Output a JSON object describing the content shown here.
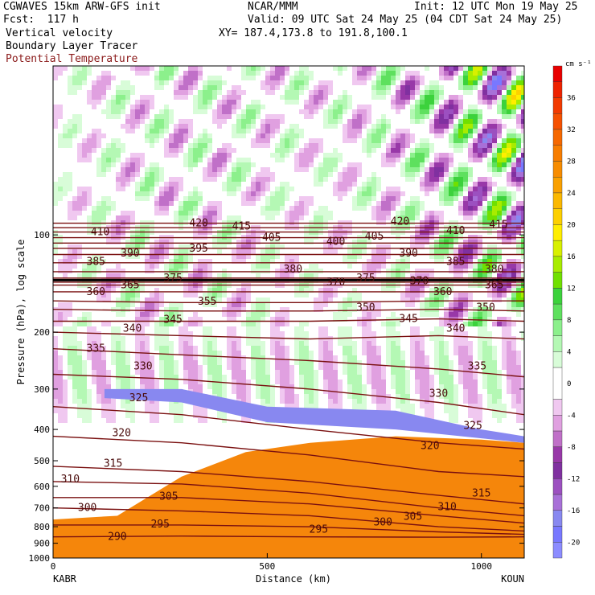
{
  "header": {
    "line1_left": "CGWAVES 15km ARW-GFS init",
    "line1_center": "NCAR/MMM",
    "line1_right": "Init: 12 UTC Mon 19 May 25",
    "line2_left": "Fcst:  117 h",
    "line2_right": "Valid: 09 UTC Sat 24 May 25 (04 CDT Sat 24 May 25)",
    "line3_left": "Vertical velocity",
    "line3_right": "XY= 187.4,173.8 to 191.8,100.1",
    "line4_left": "Boundary Layer Tracer",
    "line5_left": "Potential Temperature"
  },
  "colors": {
    "potential_temperature": "#7a1010",
    "header_pt_label": "#8b1a1a",
    "cloud_fill": "#f5860b",
    "tropopause": "#000000"
  },
  "chart_data": {
    "type": "cross-section",
    "ylabel": "Pressure (hPa), log scale",
    "xlabel": "Distance (km)",
    "x_range": [
      0,
      1100
    ],
    "y_range_hPa": [
      1000,
      30
    ],
    "y_scale": "log",
    "x_ticks": [
      0,
      500,
      1000
    ],
    "x_tick_labels": [
      "0",
      "500",
      "1000"
    ],
    "y_ticks": [
      100,
      200,
      300,
      400,
      500,
      600,
      700,
      800,
      900,
      1000
    ],
    "y_tick_labels": [
      "100",
      "200",
      "300",
      "400",
      "500",
      "600",
      "700",
      "800",
      "900",
      "1000"
    ],
    "endpoints": {
      "left": "KABR",
      "right": "KOUN"
    },
    "colorbar": {
      "unit": "cm s⁻¹",
      "labels": [
        "36",
        "32",
        "28",
        "24",
        "20",
        "16",
        "12",
        "8",
        "4",
        "0",
        "-4",
        "-8",
        "-12",
        "-16",
        "-20"
      ],
      "label_values": [
        36,
        32,
        28,
        24,
        20,
        16,
        12,
        8,
        4,
        0,
        -4,
        -8,
        -12,
        -16,
        -20
      ],
      "bins": [
        {
          "lo": 38,
          "hi": 40,
          "color": "#e80000"
        },
        {
          "lo": 36,
          "hi": 38,
          "color": "#ee2200"
        },
        {
          "lo": 34,
          "hi": 36,
          "color": "#f23a00"
        },
        {
          "lo": 32,
          "hi": 34,
          "color": "#f55000"
        },
        {
          "lo": 30,
          "hi": 32,
          "color": "#f66800"
        },
        {
          "lo": 28,
          "hi": 30,
          "color": "#f77d00"
        },
        {
          "lo": 26,
          "hi": 28,
          "color": "#f78c00"
        },
        {
          "lo": 24,
          "hi": 26,
          "color": "#f9a000"
        },
        {
          "lo": 22,
          "hi": 24,
          "color": "#fbb800"
        },
        {
          "lo": 20,
          "hi": 22,
          "color": "#fdd000"
        },
        {
          "lo": 18,
          "hi": 20,
          "color": "#ffee00"
        },
        {
          "lo": 16,
          "hi": 18,
          "color": "#d8f000"
        },
        {
          "lo": 14,
          "hi": 16,
          "color": "#a8ec00"
        },
        {
          "lo": 12,
          "hi": 14,
          "color": "#70e000"
        },
        {
          "lo": 10,
          "hi": 12,
          "color": "#3cd23c"
        },
        {
          "lo": 8,
          "hi": 10,
          "color": "#5ee05e"
        },
        {
          "lo": 6,
          "hi": 8,
          "color": "#8cf08c"
        },
        {
          "lo": 4,
          "hi": 6,
          "color": "#b4f8b4"
        },
        {
          "lo": 2,
          "hi": 4,
          "color": "#d8fcd8"
        },
        {
          "lo": -2,
          "hi": 2,
          "color": "#ffffff"
        },
        {
          "lo": -4,
          "hi": -2,
          "color": "#f0c8f0"
        },
        {
          "lo": -6,
          "hi": -4,
          "color": "#e0a0e0"
        },
        {
          "lo": -8,
          "hi": -6,
          "color": "#c070c8"
        },
        {
          "lo": -10,
          "hi": -8,
          "color": "#9838a8"
        },
        {
          "lo": -12,
          "hi": -10,
          "color": "#8030a0"
        },
        {
          "lo": -14,
          "hi": -12,
          "color": "#9c50c0"
        },
        {
          "lo": -16,
          "hi": -14,
          "color": "#a870d8"
        },
        {
          "lo": -18,
          "hi": -16,
          "color": "#8888f0"
        },
        {
          "lo": -20,
          "hi": -18,
          "color": "#7878ff"
        },
        {
          "lo": -22,
          "hi": -20,
          "color": "#8c8cff"
        }
      ]
    },
    "isentropes": [
      {
        "theta": 290,
        "points": [
          [
            0,
            860
          ],
          [
            300,
            855
          ],
          [
            600,
            860
          ],
          [
            900,
            862
          ],
          [
            1100,
            860
          ]
        ],
        "labels": [
          [
            150,
            858
          ]
        ]
      },
      {
        "theta": 295,
        "points": [
          [
            0,
            790
          ],
          [
            300,
            790
          ],
          [
            600,
            800
          ],
          [
            900,
            830
          ],
          [
            1100,
            845
          ]
        ],
        "labels": [
          [
            250,
            785
          ],
          [
            620,
            815
          ]
        ]
      },
      {
        "theta": 300,
        "points": [
          [
            0,
            700
          ],
          [
            300,
            715
          ],
          [
            600,
            740
          ],
          [
            900,
            800
          ],
          [
            1100,
            825
          ]
        ],
        "labels": [
          [
            80,
            700
          ],
          [
            770,
            775
          ]
        ]
      },
      {
        "theta": 305,
        "points": [
          [
            0,
            650
          ],
          [
            300,
            650
          ],
          [
            600,
            680
          ],
          [
            900,
            740
          ],
          [
            1100,
            780
          ]
        ],
        "labels": [
          [
            270,
            645
          ],
          [
            840,
            745
          ]
        ]
      },
      {
        "theta": 310,
        "points": [
          [
            0,
            580
          ],
          [
            300,
            590
          ],
          [
            600,
            630
          ],
          [
            900,
            700
          ],
          [
            1100,
            740
          ]
        ],
        "labels": [
          [
            40,
            570
          ],
          [
            920,
            695
          ]
        ]
      },
      {
        "theta": 315,
        "points": [
          [
            0,
            520
          ],
          [
            300,
            540
          ],
          [
            600,
            580
          ],
          [
            900,
            640
          ],
          [
            1100,
            680
          ]
        ],
        "labels": [
          [
            140,
            510
          ],
          [
            1000,
            630
          ]
        ]
      },
      {
        "theta": 320,
        "points": [
          [
            0,
            420
          ],
          [
            300,
            440
          ],
          [
            600,
            480
          ],
          [
            900,
            540
          ],
          [
            1100,
            560
          ]
        ],
        "labels": [
          [
            160,
            410
          ],
          [
            880,
            450
          ]
        ]
      },
      {
        "theta": 325,
        "points": [
          [
            0,
            340
          ],
          [
            300,
            360
          ],
          [
            600,
            400
          ],
          [
            900,
            440
          ],
          [
            1100,
            460
          ]
        ],
        "labels": [
          [
            200,
            320
          ],
          [
            980,
            390
          ]
        ]
      },
      {
        "theta": 330,
        "points": [
          [
            0,
            270
          ],
          [
            300,
            280
          ],
          [
            600,
            300
          ],
          [
            900,
            330
          ],
          [
            1100,
            360
          ]
        ],
        "labels": [
          [
            210,
            255
          ],
          [
            900,
            310
          ]
        ]
      },
      {
        "theta": 335,
        "points": [
          [
            0,
            225
          ],
          [
            300,
            235
          ],
          [
            600,
            245
          ],
          [
            900,
            260
          ],
          [
            1100,
            275
          ]
        ],
        "labels": [
          [
            100,
            225
          ],
          [
            990,
            255
          ]
        ]
      },
      {
        "theta": 340,
        "points": [
          [
            0,
            200
          ],
          [
            300,
            205
          ],
          [
            600,
            210
          ],
          [
            900,
            205
          ],
          [
            1100,
            210
          ]
        ],
        "labels": [
          [
            185,
            195
          ],
          [
            940,
            195
          ]
        ]
      },
      {
        "theta": 345,
        "points": [
          [
            0,
            185
          ],
          [
            300,
            185
          ],
          [
            600,
            185
          ],
          [
            900,
            182
          ],
          [
            1100,
            185
          ]
        ],
        "labels": [
          [
            280,
            183
          ],
          [
            830,
            182
          ]
        ]
      },
      {
        "theta": 350,
        "points": [
          [
            0,
            170
          ],
          [
            300,
            172
          ],
          [
            600,
            172
          ],
          [
            900,
            170
          ],
          [
            1100,
            172
          ]
        ],
        "labels": [
          [
            730,
            168
          ],
          [
            1010,
            168
          ]
        ]
      },
      {
        "theta": 355,
        "points": [
          [
            0,
            160
          ],
          [
            300,
            162
          ],
          [
            600,
            162
          ],
          [
            900,
            160
          ],
          [
            1100,
            160
          ]
        ],
        "labels": [
          [
            360,
            161
          ]
        ]
      },
      {
        "theta": 360,
        "points": [
          [
            0,
            150
          ],
          [
            300,
            150
          ],
          [
            600,
            150
          ],
          [
            900,
            150
          ],
          [
            1100,
            150
          ]
        ],
        "labels": [
          [
            100,
            150
          ],
          [
            910,
            150
          ]
        ]
      },
      {
        "theta": 365,
        "points": [
          [
            0,
            143
          ],
          [
            300,
            143
          ],
          [
            600,
            143
          ],
          [
            900,
            143
          ],
          [
            1100,
            143
          ]
        ],
        "labels": [
          [
            180,
            143
          ],
          [
            1030,
            143
          ]
        ]
      },
      {
        "theta": 370,
        "points": [
          [
            0,
            140
          ],
          [
            300,
            140
          ],
          [
            600,
            140
          ],
          [
            900,
            140
          ],
          [
            1100,
            140
          ]
        ],
        "labels": [
          [
            660,
            140
          ],
          [
            855,
            139
          ]
        ]
      },
      {
        "theta": 375,
        "points": [
          [
            0,
            136
          ],
          [
            300,
            136
          ],
          [
            600,
            136
          ],
          [
            900,
            136
          ],
          [
            1100,
            136
          ]
        ],
        "labels": [
          [
            280,
            136
          ],
          [
            730,
            136
          ]
        ]
      },
      {
        "theta": 380,
        "points": [
          [
            0,
            130
          ],
          [
            300,
            130
          ],
          [
            600,
            130
          ],
          [
            900,
            130
          ],
          [
            1100,
            130
          ]
        ],
        "labels": [
          [
            560,
            128
          ],
          [
            1030,
            128
          ]
        ]
      },
      {
        "theta": 385,
        "points": [
          [
            0,
            122
          ],
          [
            300,
            122
          ],
          [
            600,
            122
          ],
          [
            900,
            122
          ],
          [
            1100,
            122
          ]
        ],
        "labels": [
          [
            100,
            121
          ],
          [
            940,
            121
          ]
        ]
      },
      {
        "theta": 390,
        "points": [
          [
            0,
            115
          ],
          [
            300,
            115
          ],
          [
            600,
            115
          ],
          [
            900,
            115
          ],
          [
            1100,
            115
          ]
        ],
        "labels": [
          [
            180,
            114
          ],
          [
            830,
            114
          ]
        ]
      },
      {
        "theta": 395,
        "points": [
          [
            0,
            110
          ],
          [
            300,
            110
          ],
          [
            600,
            110
          ],
          [
            900,
            110
          ],
          [
            1100,
            110
          ]
        ],
        "labels": [
          [
            340,
            110
          ]
        ]
      },
      {
        "theta": 400,
        "points": [
          [
            0,
            106
          ],
          [
            300,
            106
          ],
          [
            600,
            106
          ],
          [
            900,
            106
          ],
          [
            1100,
            106
          ]
        ],
        "labels": [
          [
            660,
            105
          ]
        ]
      },
      {
        "theta": 405,
        "points": [
          [
            0,
            102
          ],
          [
            300,
            102
          ],
          [
            600,
            102
          ],
          [
            900,
            102
          ],
          [
            1100,
            102
          ]
        ],
        "labels": [
          [
            510,
            102
          ],
          [
            750,
            101
          ]
        ]
      },
      {
        "theta": 410,
        "points": [
          [
            0,
            98
          ],
          [
            300,
            98
          ],
          [
            600,
            98
          ],
          [
            900,
            98
          ],
          [
            1100,
            98
          ]
        ],
        "labels": [
          [
            110,
            98
          ],
          [
            940,
            97
          ]
        ]
      },
      {
        "theta": 415,
        "points": [
          [
            0,
            95
          ],
          [
            300,
            95
          ],
          [
            600,
            95
          ],
          [
            900,
            95
          ],
          [
            1100,
            95
          ]
        ],
        "labels": [
          [
            440,
            94
          ],
          [
            1040,
            93
          ]
        ]
      },
      {
        "theta": 420,
        "points": [
          [
            0,
            92
          ],
          [
            300,
            92
          ],
          [
            600,
            92
          ],
          [
            900,
            92
          ],
          [
            1100,
            92
          ]
        ],
        "labels": [
          [
            340,
            92
          ],
          [
            810,
            91
          ]
        ]
      }
    ]
  }
}
